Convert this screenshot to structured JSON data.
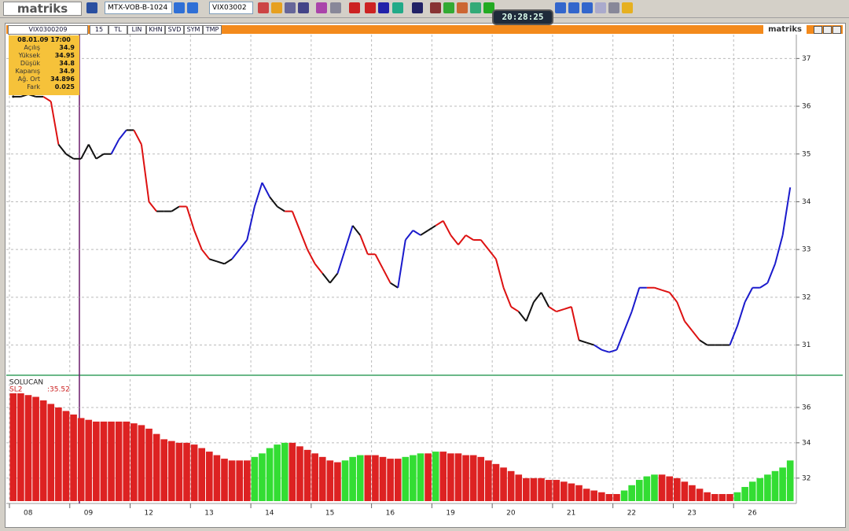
{
  "toolbar": {
    "logo": "matriks",
    "symbol_select": "MTX-VOB-B-1024",
    "code_select": "VIX03002",
    "clock": "20:28:25"
  },
  "tabs": {
    "symbol": "VIX0300209",
    "items": [
      "15",
      "TL",
      "LIN",
      "KHN",
      "SVD",
      "SYM",
      "TMP"
    ],
    "brand": "matriks"
  },
  "info": {
    "datetime": "08.01.09 17:00",
    "rows": [
      [
        "Açılış",
        "34.9"
      ],
      [
        "Yüksek",
        "34.95"
      ],
      [
        "Düşük",
        "34.8"
      ],
      [
        "Kapanış",
        "34.9"
      ],
      [
        "Ağ. Ort",
        "34.896"
      ],
      [
        "Fark",
        "0.025"
      ]
    ]
  },
  "chart_data": [
    {
      "type": "line",
      "values": [
        36.2,
        36.2,
        36.25,
        36.2,
        36.2,
        36.1,
        35.2,
        35.0,
        34.9,
        34.9,
        35.2,
        34.9,
        35.0,
        35.0,
        35.3,
        35.5,
        35.5,
        35.2,
        34.0,
        33.8,
        33.8,
        33.8,
        33.9,
        33.9,
        33.4,
        33.0,
        32.8,
        32.75,
        32.7,
        32.8,
        33.0,
        33.2,
        33.9,
        34.4,
        34.1,
        33.9,
        33.8,
        33.8,
        33.4,
        33.0,
        32.7,
        32.5,
        32.3,
        32.5,
        33.0,
        33.5,
        33.3,
        32.9,
        32.9,
        32.6,
        32.3,
        32.2,
        33.2,
        33.4,
        33.3,
        33.4,
        33.5,
        33.6,
        33.3,
        33.1,
        33.3,
        33.2,
        33.2,
        33.0,
        32.8,
        32.2,
        31.8,
        31.7,
        31.5,
        31.9,
        32.1,
        31.8,
        31.7,
        31.75,
        31.8,
        31.1,
        31.05,
        31.0,
        30.9,
        30.85,
        30.9,
        31.3,
        31.7,
        32.2,
        32.2,
        32.2,
        32.15,
        32.1,
        31.9,
        31.5,
        31.3,
        31.1,
        31.0,
        31.0,
        31.0,
        31.0,
        31.4,
        31.9,
        32.2,
        32.2,
        32.3,
        32.7,
        33.3,
        34.3
      ],
      "colors": [
        "#111111",
        "#111111",
        "#111111",
        "#111111",
        "#111111",
        "#dd1111",
        "#dd1111",
        "#111111",
        "#111111",
        "#111111",
        "#111111",
        "#111111",
        "#111111",
        "#111111",
        "#1a1acc",
        "#1a1acc",
        "#111111",
        "#dd1111",
        "#dd1111",
        "#dd1111",
        "#111111",
        "#111111",
        "#111111",
        "#dd1111",
        "#dd1111",
        "#dd1111",
        "#dd1111",
        "#111111",
        "#111111",
        "#111111",
        "#1a1acc",
        "#1a1acc",
        "#1a1acc",
        "#1a1acc",
        "#1a1acc",
        "#111111",
        "#111111",
        "#dd1111",
        "#dd1111",
        "#dd1111",
        "#dd1111",
        "#dd1111",
        "#111111",
        "#111111",
        "#1a1acc",
        "#1a1acc",
        "#111111",
        "#dd1111",
        "#dd1111",
        "#dd1111",
        "#dd1111",
        "#111111",
        "#1a1acc",
        "#1a1acc",
        "#1a1acc",
        "#111111",
        "#111111",
        "#dd1111",
        "#dd1111",
        "#dd1111",
        "#dd1111",
        "#dd1111",
        "#dd1111",
        "#dd1111",
        "#dd1111",
        "#dd1111",
        "#dd1111",
        "#dd1111",
        "#111111",
        "#111111",
        "#111111",
        "#111111",
        "#dd1111",
        "#dd1111",
        "#dd1111",
        "#dd1111",
        "#111111",
        "#111111",
        "#1a1acc",
        "#1a1acc",
        "#1a1acc",
        "#1a1acc",
        "#1a1acc",
        "#1a1acc",
        "#1a1acc",
        "#dd1111",
        "#dd1111",
        "#dd1111",
        "#dd1111",
        "#dd1111",
        "#dd1111",
        "#dd1111",
        "#111111",
        "#111111",
        "#111111",
        "#111111",
        "#1a1acc",
        "#1a1acc",
        "#1a1acc",
        "#1a1acc",
        "#1a1acc",
        "#1a1acc",
        "#1a1acc",
        "#1a1acc"
      ],
      "ylim": [
        30.4,
        37.5
      ],
      "yticks": [
        31,
        32,
        33,
        34,
        35,
        36,
        37
      ],
      "grid": true
    },
    {
      "type": "bar",
      "title": "SOLUCAN",
      "series_label": "SL2",
      "last_label": ":35.52",
      "categories": [
        "08",
        null,
        null,
        null,
        null,
        null,
        null,
        null,
        "09",
        null,
        null,
        null,
        null,
        null,
        null,
        null,
        "12",
        null,
        null,
        null,
        null,
        null,
        null,
        null,
        "13",
        null,
        null,
        null,
        null,
        null,
        null,
        null,
        "14",
        null,
        null,
        null,
        null,
        null,
        null,
        null,
        "15",
        null,
        null,
        null,
        null,
        null,
        null,
        null,
        "16",
        null,
        null,
        null,
        null,
        null,
        null,
        null,
        "19",
        null,
        null,
        null,
        null,
        null,
        null,
        null,
        "20",
        null,
        null,
        null,
        null,
        null,
        null,
        null,
        "21",
        null,
        null,
        null,
        null,
        null,
        null,
        null,
        "22",
        null,
        null,
        null,
        null,
        null,
        null,
        null,
        "23",
        null,
        null,
        null,
        null,
        null,
        null,
        null,
        "26",
        null,
        null,
        null,
        null,
        null,
        null,
        null
      ],
      "values": [
        36.8,
        36.8,
        36.7,
        36.6,
        36.4,
        36.2,
        36.0,
        35.8,
        35.6,
        35.4,
        35.3,
        35.2,
        35.2,
        35.2,
        35.2,
        35.2,
        35.1,
        35.0,
        34.8,
        34.5,
        34.2,
        34.1,
        34.0,
        34.0,
        33.9,
        33.7,
        33.5,
        33.3,
        33.1,
        33.0,
        33.0,
        33.0,
        33.2,
        33.4,
        33.7,
        33.9,
        34.0,
        34.0,
        33.8,
        33.6,
        33.4,
        33.2,
        33.0,
        32.9,
        33.0,
        33.2,
        33.3,
        33.3,
        33.3,
        33.2,
        33.1,
        33.1,
        33.2,
        33.3,
        33.4,
        33.4,
        33.5,
        33.5,
        33.4,
        33.4,
        33.3,
        33.3,
        33.2,
        33.0,
        32.8,
        32.6,
        32.4,
        32.2,
        32.0,
        32.0,
        32.0,
        31.9,
        31.9,
        31.8,
        31.7,
        31.6,
        31.4,
        31.3,
        31.2,
        31.1,
        31.1,
        31.3,
        31.6,
        31.9,
        32.1,
        32.2,
        32.2,
        32.1,
        32.0,
        31.8,
        31.6,
        31.4,
        31.2,
        31.1,
        31.1,
        31.1,
        31.2,
        31.5,
        31.8,
        32.0,
        32.2,
        32.4,
        32.6,
        33.0
      ],
      "up_color": "#33dd33",
      "down_color": "#dd2222",
      "ylim": [
        30.7,
        37.6
      ],
      "yticks": [
        32,
        34,
        36
      ],
      "grid": true
    }
  ]
}
